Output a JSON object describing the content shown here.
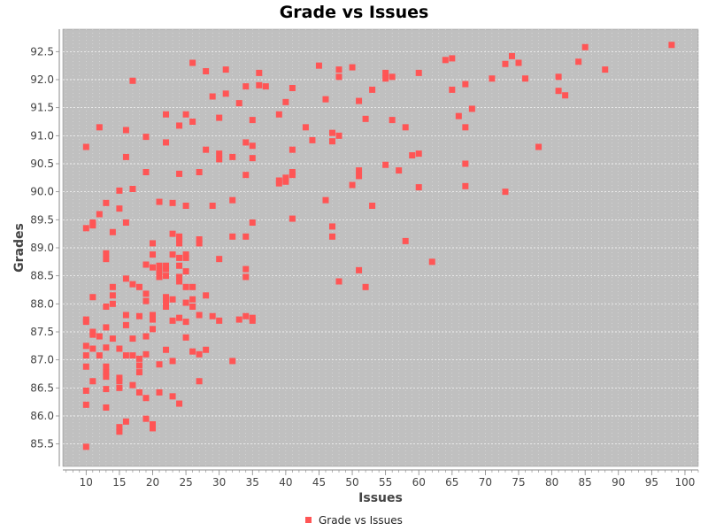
{
  "chart_data": {
    "type": "scatter",
    "title": "Grade vs Issues",
    "xlabel": "Issues",
    "ylabel": "Grades",
    "xlim": [
      6.5,
      102
    ],
    "ylim": [
      85.1,
      92.9
    ],
    "xticks": [
      10,
      15,
      20,
      25,
      30,
      35,
      40,
      45,
      50,
      55,
      60,
      65,
      70,
      75,
      80,
      85,
      90,
      95,
      100
    ],
    "yticks": [
      85.5,
      86.0,
      86.5,
      87.0,
      87.5,
      88.0,
      88.5,
      89.0,
      89.5,
      90.0,
      90.5,
      91.0,
      91.5,
      92.0,
      92.5
    ],
    "grid": true,
    "legend_position": "bottom",
    "background_color": "#c0c0c0",
    "marker_color": "#ff5555",
    "series": [
      {
        "name": "Grade vs Issues",
        "points": [
          [
            10,
            85.45
          ],
          [
            10,
            86.2
          ],
          [
            10,
            86.45
          ],
          [
            10,
            86.88
          ],
          [
            10,
            87.08
          ],
          [
            10,
            87.25
          ],
          [
            10,
            87.68
          ],
          [
            10,
            87.72
          ],
          [
            10,
            89.35
          ],
          [
            10,
            90.8
          ],
          [
            11,
            86.62
          ],
          [
            11,
            87.2
          ],
          [
            11,
            87.45
          ],
          [
            11,
            87.5
          ],
          [
            11,
            88.12
          ],
          [
            11,
            89.4
          ],
          [
            11,
            89.45
          ],
          [
            12,
            87.08
          ],
          [
            12,
            87.42
          ],
          [
            12,
            89.6
          ],
          [
            12,
            91.15
          ],
          [
            13,
            86.15
          ],
          [
            13,
            86.48
          ],
          [
            13,
            86.7
          ],
          [
            13,
            86.78
          ],
          [
            13,
            86.88
          ],
          [
            13,
            87.22
          ],
          [
            13,
            87.58
          ],
          [
            13,
            87.95
          ],
          [
            13,
            88.8
          ],
          [
            13,
            88.9
          ],
          [
            13,
            89.8
          ],
          [
            14,
            87.38
          ],
          [
            14,
            88.0
          ],
          [
            14,
            88.15
          ],
          [
            14,
            88.3
          ],
          [
            14,
            89.28
          ],
          [
            15,
            85.72
          ],
          [
            15,
            85.8
          ],
          [
            15,
            86.5
          ],
          [
            15,
            86.62
          ],
          [
            15,
            86.68
          ],
          [
            15,
            87.2
          ],
          [
            15,
            89.7
          ],
          [
            15,
            90.02
          ],
          [
            16,
            85.9
          ],
          [
            16,
            87.08
          ],
          [
            16,
            87.62
          ],
          [
            16,
            87.8
          ],
          [
            16,
            88.45
          ],
          [
            16,
            89.45
          ],
          [
            16,
            90.62
          ],
          [
            16,
            91.1
          ],
          [
            17,
            86.55
          ],
          [
            17,
            87.08
          ],
          [
            17,
            87.38
          ],
          [
            17,
            88.35
          ],
          [
            17,
            90.05
          ],
          [
            17,
            91.98
          ],
          [
            18,
            86.42
          ],
          [
            18,
            86.78
          ],
          [
            18,
            86.9
          ],
          [
            18,
            87.02
          ],
          [
            18,
            87.78
          ],
          [
            18,
            88.3
          ],
          [
            19,
            85.95
          ],
          [
            19,
            86.32
          ],
          [
            19,
            87.1
          ],
          [
            19,
            87.42
          ],
          [
            19,
            88.05
          ],
          [
            19,
            88.18
          ],
          [
            19,
            88.7
          ],
          [
            19,
            90.35
          ],
          [
            19,
            90.98
          ],
          [
            20,
            85.78
          ],
          [
            20,
            85.85
          ],
          [
            20,
            87.55
          ],
          [
            20,
            87.72
          ],
          [
            20,
            87.8
          ],
          [
            20,
            88.65
          ],
          [
            20,
            88.88
          ],
          [
            20,
            89.08
          ],
          [
            21,
            86.42
          ],
          [
            21,
            86.92
          ],
          [
            21,
            88.48
          ],
          [
            21,
            88.55
          ],
          [
            21,
            88.62
          ],
          [
            21,
            88.68
          ],
          [
            21,
            89.82
          ],
          [
            22,
            87.18
          ],
          [
            22,
            87.95
          ],
          [
            22,
            88.02
          ],
          [
            22,
            88.12
          ],
          [
            22,
            88.5
          ],
          [
            22,
            88.62
          ],
          [
            22,
            88.68
          ],
          [
            22,
            90.88
          ],
          [
            22,
            91.38
          ],
          [
            23,
            86.35
          ],
          [
            23,
            86.98
          ],
          [
            23,
            87.7
          ],
          [
            23,
            88.08
          ],
          [
            23,
            88.88
          ],
          [
            23,
            89.25
          ],
          [
            23,
            89.8
          ],
          [
            24,
            86.22
          ],
          [
            24,
            87.75
          ],
          [
            24,
            88.4
          ],
          [
            24,
            88.48
          ],
          [
            24,
            88.68
          ],
          [
            24,
            88.82
          ],
          [
            24,
            89.08
          ],
          [
            24,
            89.15
          ],
          [
            24,
            89.2
          ],
          [
            24,
            90.32
          ],
          [
            24,
            91.18
          ],
          [
            25,
            87.4
          ],
          [
            25,
            87.68
          ],
          [
            25,
            88.02
          ],
          [
            25,
            88.3
          ],
          [
            25,
            88.58
          ],
          [
            25,
            88.82
          ],
          [
            25,
            88.88
          ],
          [
            25,
            89.75
          ],
          [
            25,
            91.38
          ],
          [
            26,
            87.15
          ],
          [
            26,
            87.95
          ],
          [
            26,
            88.08
          ],
          [
            26,
            88.3
          ],
          [
            26,
            91.25
          ],
          [
            26,
            92.3
          ],
          [
            27,
            86.62
          ],
          [
            27,
            87.1
          ],
          [
            27,
            87.8
          ],
          [
            27,
            89.08
          ],
          [
            27,
            89.15
          ],
          [
            27,
            90.35
          ],
          [
            28,
            87.18
          ],
          [
            28,
            88.15
          ],
          [
            28,
            90.75
          ],
          [
            28,
            92.15
          ],
          [
            29,
            87.78
          ],
          [
            29,
            89.75
          ],
          [
            29,
            91.7
          ],
          [
            30,
            87.7
          ],
          [
            30,
            88.8
          ],
          [
            30,
            90.58
          ],
          [
            30,
            90.68
          ],
          [
            30,
            91.32
          ],
          [
            31,
            91.75
          ],
          [
            31,
            92.18
          ],
          [
            32,
            86.98
          ],
          [
            32,
            89.2
          ],
          [
            32,
            89.85
          ],
          [
            32,
            90.62
          ],
          [
            33,
            87.72
          ],
          [
            33,
            91.58
          ],
          [
            34,
            87.78
          ],
          [
            34,
            88.48
          ],
          [
            34,
            88.62
          ],
          [
            34,
            89.2
          ],
          [
            34,
            90.3
          ],
          [
            34,
            90.88
          ],
          [
            34,
            91.88
          ],
          [
            35,
            87.7
          ],
          [
            35,
            87.75
          ],
          [
            35,
            89.45
          ],
          [
            35,
            90.6
          ],
          [
            35,
            90.82
          ],
          [
            35,
            91.28
          ],
          [
            36,
            91.9
          ],
          [
            36,
            92.12
          ],
          [
            37,
            91.88
          ],
          [
            39,
            90.15
          ],
          [
            39,
            90.2
          ],
          [
            39,
            91.38
          ],
          [
            40,
            90.18
          ],
          [
            40,
            90.25
          ],
          [
            40,
            91.6
          ],
          [
            41,
            89.52
          ],
          [
            41,
            90.3
          ],
          [
            41,
            90.35
          ],
          [
            41,
            90.75
          ],
          [
            41,
            91.85
          ],
          [
            43,
            91.15
          ],
          [
            44,
            90.92
          ],
          [
            45,
            92.25
          ],
          [
            46,
            89.85
          ],
          [
            46,
            91.65
          ],
          [
            47,
            89.2
          ],
          [
            47,
            89.38
          ],
          [
            47,
            90.9
          ],
          [
            47,
            91.05
          ],
          [
            48,
            88.4
          ],
          [
            48,
            91.0
          ],
          [
            48,
            92.05
          ],
          [
            48,
            92.18
          ],
          [
            50,
            90.12
          ],
          [
            50,
            92.22
          ],
          [
            51,
            88.6
          ],
          [
            51,
            90.28
          ],
          [
            51,
            90.38
          ],
          [
            51,
            91.62
          ],
          [
            52,
            88.3
          ],
          [
            52,
            91.3
          ],
          [
            53,
            89.75
          ],
          [
            53,
            91.82
          ],
          [
            55,
            90.48
          ],
          [
            55,
            92.02
          ],
          [
            55,
            92.12
          ],
          [
            56,
            91.28
          ],
          [
            56,
            92.05
          ],
          [
            57,
            90.38
          ],
          [
            58,
            89.12
          ],
          [
            58,
            91.15
          ],
          [
            59,
            90.65
          ],
          [
            60,
            90.08
          ],
          [
            60,
            90.68
          ],
          [
            60,
            92.12
          ],
          [
            62,
            88.75
          ],
          [
            64,
            92.35
          ],
          [
            65,
            91.82
          ],
          [
            65,
            92.38
          ],
          [
            66,
            91.35
          ],
          [
            67,
            90.1
          ],
          [
            67,
            90.5
          ],
          [
            67,
            91.15
          ],
          [
            67,
            91.92
          ],
          [
            68,
            91.48
          ],
          [
            71,
            92.02
          ],
          [
            73,
            90.0
          ],
          [
            73,
            92.28
          ],
          [
            74,
            92.42
          ],
          [
            75,
            92.3
          ],
          [
            76,
            92.02
          ],
          [
            78,
            90.8
          ],
          [
            81,
            91.8
          ],
          [
            81,
            92.05
          ],
          [
            82,
            91.72
          ],
          [
            84,
            92.32
          ],
          [
            85,
            92.58
          ],
          [
            88,
            92.18
          ],
          [
            98,
            92.62
          ]
        ]
      }
    ]
  }
}
